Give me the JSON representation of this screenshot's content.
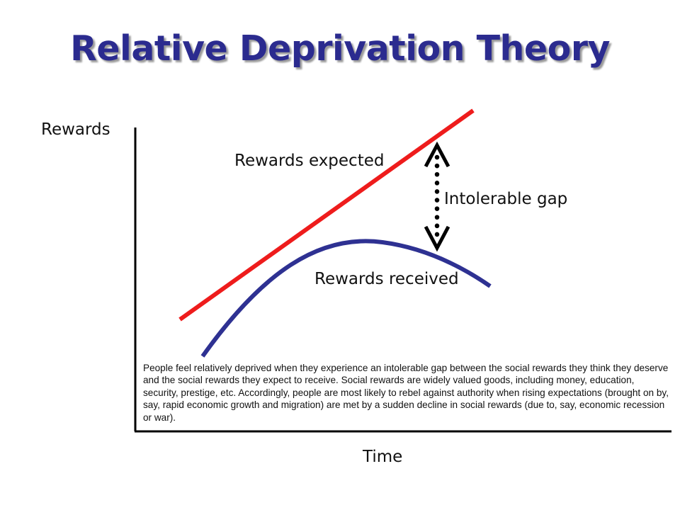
{
  "title": "Relative Deprivation Theory",
  "axes": {
    "y_label": "Rewards",
    "x_label": "Time"
  },
  "curves": {
    "expected": {
      "label": "Rewards expected",
      "color": "#ee1c1c"
    },
    "received": {
      "label": "Rewards received",
      "color": "#2e3192"
    }
  },
  "gap": {
    "label": "Intolerable gap",
    "color": "#000000"
  },
  "caption": "People feel relatively deprived when they experience an intolerable gap between the social rewards they think they deserve and the social rewards they expect to receive. Social rewards are widely valued goods, including money, education, security, prestige, etc. Accordingly, people are most likely to rebel against authority when rising expectations (brought on by, say, rapid economic growth and migration) are met by a sudden decline in social rewards (due to, say, economic recession or war)."
}
